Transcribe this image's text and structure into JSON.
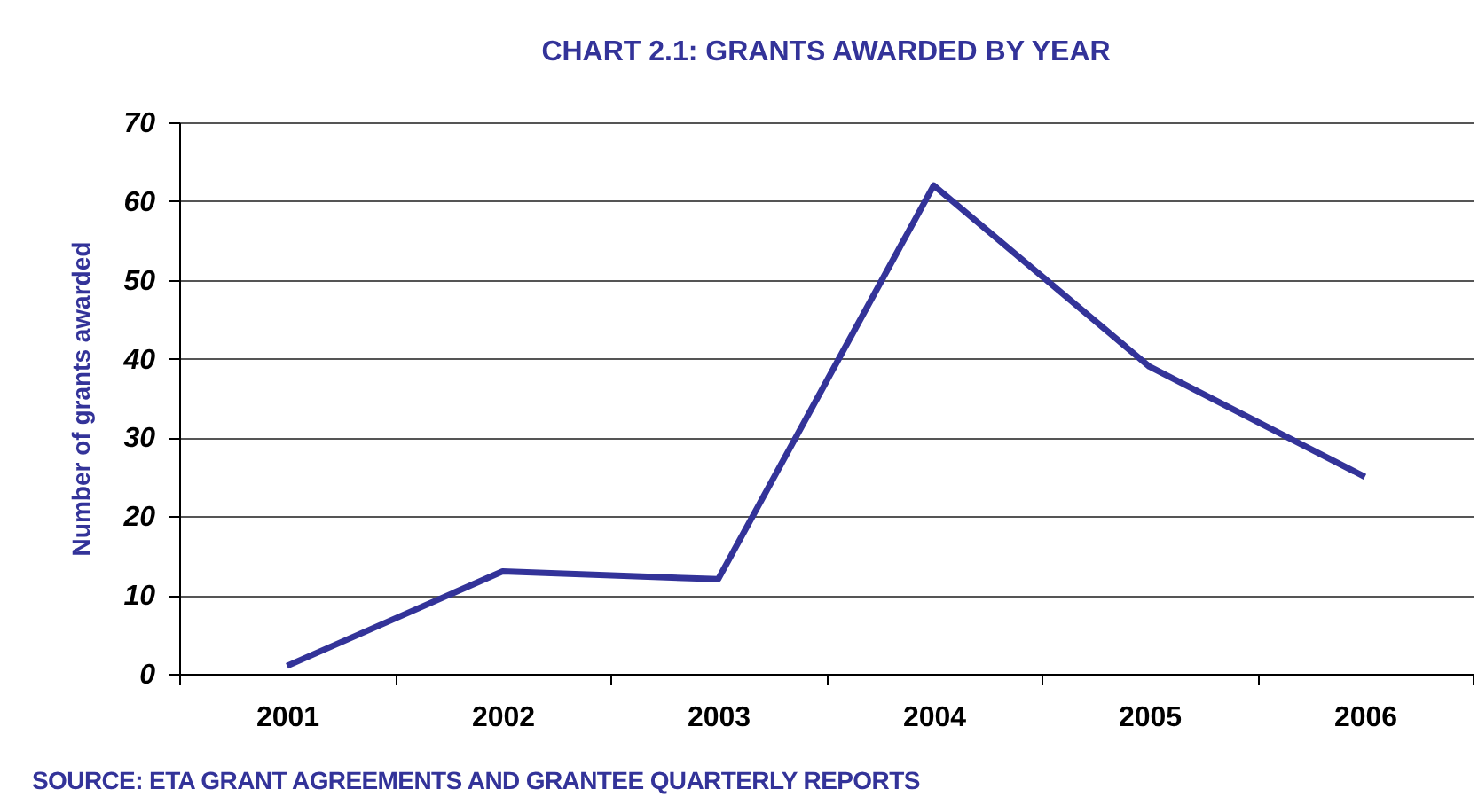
{
  "chart_data": {
    "type": "line",
    "title": "CHART 2.1: GRANTS AWARDED BY YEAR",
    "ylabel": "Number of grants awarded",
    "categories": [
      "2001",
      "2002",
      "2003",
      "2004",
      "2005",
      "2006"
    ],
    "series": [
      {
        "color": "#333399",
        "values": [
          1,
          13,
          12,
          62,
          39,
          25
        ]
      }
    ],
    "ylim": [
      0,
      70
    ],
    "yticks": [
      0,
      10,
      20,
      30,
      40,
      50,
      60,
      70
    ],
    "grid": "y",
    "marker": "none",
    "line_style": "solid",
    "annotations": [
      "SOURCE: ETA GRANT AGREEMENTS AND GRANTEE QUARTERLY REPORTS"
    ]
  }
}
